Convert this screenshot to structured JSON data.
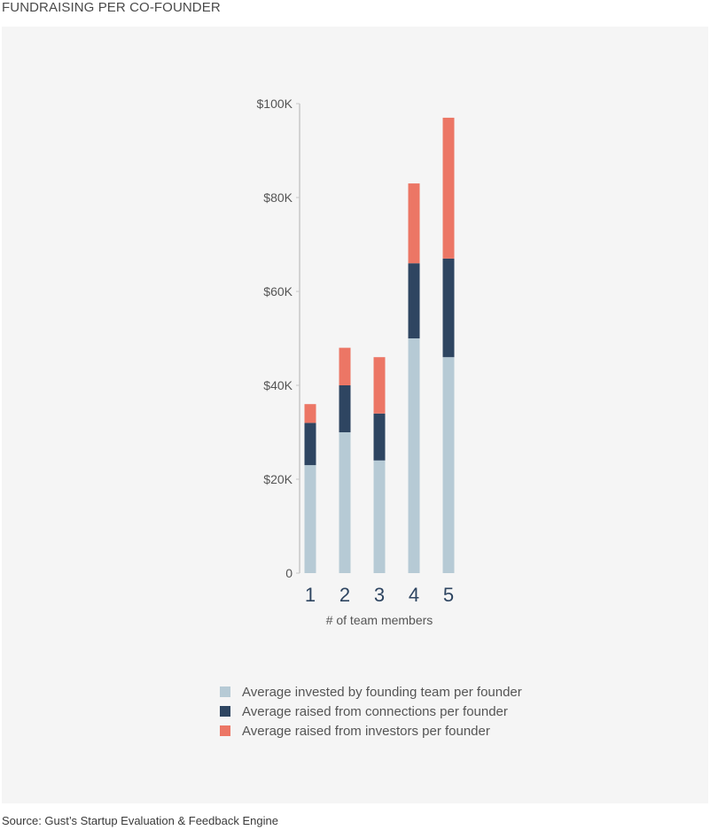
{
  "title": "FUNDRAISING PER CO-FOUNDER",
  "source": "Source: Gust’s Startup Evaluation & Feedback Engine",
  "chart_data": {
    "type": "bar",
    "stacked": true,
    "categories": [
      "1",
      "2",
      "3",
      "4",
      "5"
    ],
    "xlabel": "# of team members",
    "ylabel": "",
    "ylim": [
      0,
      100000
    ],
    "yticks": [
      {
        "value": 0,
        "label": "0"
      },
      {
        "value": 20000,
        "label": "$20K"
      },
      {
        "value": 40000,
        "label": "$40K"
      },
      {
        "value": 60000,
        "label": "$60K"
      },
      {
        "value": 80000,
        "label": "$80K"
      },
      {
        "value": 100000,
        "label": "$100K"
      }
    ],
    "series": [
      {
        "name": "Average invested by founding team per founder",
        "color": "#b6cad5",
        "values": [
          23000,
          30000,
          24000,
          50000,
          46000
        ]
      },
      {
        "name": "Average raised from connections per founder",
        "color": "#2e4561",
        "values": [
          9000,
          10000,
          10000,
          16000,
          21000
        ]
      },
      {
        "name": "Average raised from investors per founder",
        "color": "#ec7665",
        "values": [
          4000,
          8000,
          12000,
          17000,
          30000
        ]
      }
    ],
    "grid": false,
    "legend_position": "bottom"
  }
}
